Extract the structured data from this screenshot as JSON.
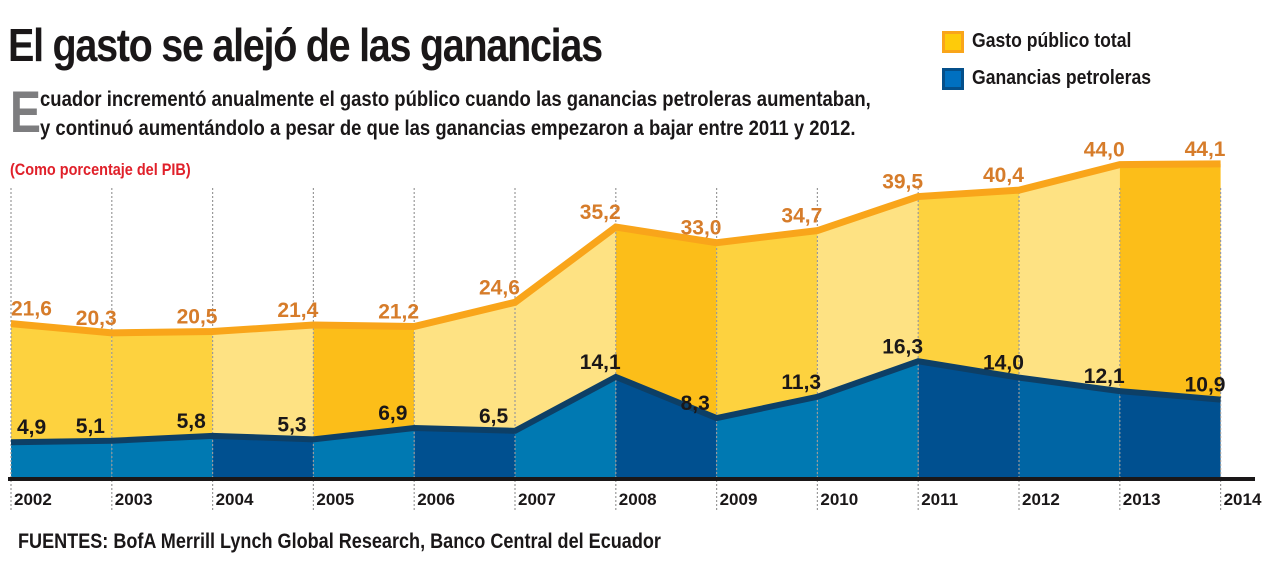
{
  "title": "El gasto se alejó de las ganancias",
  "subtitle": {
    "dropcap": "E",
    "line1": "cuador incrementó anualmente el gasto público cuando las ganancias petroleras aumentaban,",
    "line2": "y continuó aumentándolo a pesar de que las ganancias empezaron a bajar entre 2011 y 2012."
  },
  "unit_note": "(Como porcentaje del PIB)",
  "source": "FUENTES: BofA Merrill Lynch Global Research, Banco Central del Ecuador",
  "colors": {
    "gasto_line": "#f9a51a",
    "gasto_label": "#d67c2a",
    "ganancias_line": "#0d3f66",
    "yellow_shades": [
      "#fdd23f",
      "#fee283",
      "#fcbe19"
    ],
    "blue_shades": [
      "#0079b2",
      "#005090",
      "#0065a4"
    ],
    "unit_note": "#e0202a"
  },
  "chart_data": {
    "type": "area",
    "title": "El gasto se alejó de las ganancias",
    "ylabel": "Como porcentaje del PIB",
    "x": [
      "2002",
      "2003",
      "2004",
      "2005",
      "2006",
      "2007",
      "2008",
      "2009",
      "2010",
      "2011",
      "2012",
      "2013",
      "2014"
    ],
    "ylim": [
      0,
      50
    ],
    "grid": "vertical dotted lines at each year",
    "legend": "top-right",
    "series": [
      {
        "name": "Gasto público total",
        "values": [
          21.6,
          20.3,
          20.5,
          21.4,
          21.2,
          24.6,
          35.2,
          33.0,
          34.7,
          39.5,
          40.4,
          44.0,
          44.1
        ],
        "labels": [
          "21,6",
          "20,3",
          "20,5",
          "21,4",
          "21,2",
          "24,6",
          "35,2",
          "33,0",
          "34,7",
          "39,5",
          "40,4",
          "44,0",
          "44,1"
        ]
      },
      {
        "name": "Ganancias petroleras",
        "values": [
          4.9,
          5.1,
          5.8,
          5.3,
          6.9,
          6.5,
          14.1,
          8.3,
          11.3,
          16.3,
          14.0,
          12.1,
          10.9
        ],
        "labels": [
          "4,9",
          "5,1",
          "5,8",
          "5,3",
          "6,9",
          "6,5",
          "14,1",
          "8,3",
          "11,3",
          "16,3",
          "14,0",
          "12,1",
          "10,9"
        ]
      }
    ]
  },
  "legend": [
    {
      "label": "Gasto público total",
      "fill": "#fecb0a",
      "border": "#f9a51a"
    },
    {
      "label": "Ganancias petroleras",
      "fill": "#0070c0",
      "border": "#044f8a"
    }
  ]
}
